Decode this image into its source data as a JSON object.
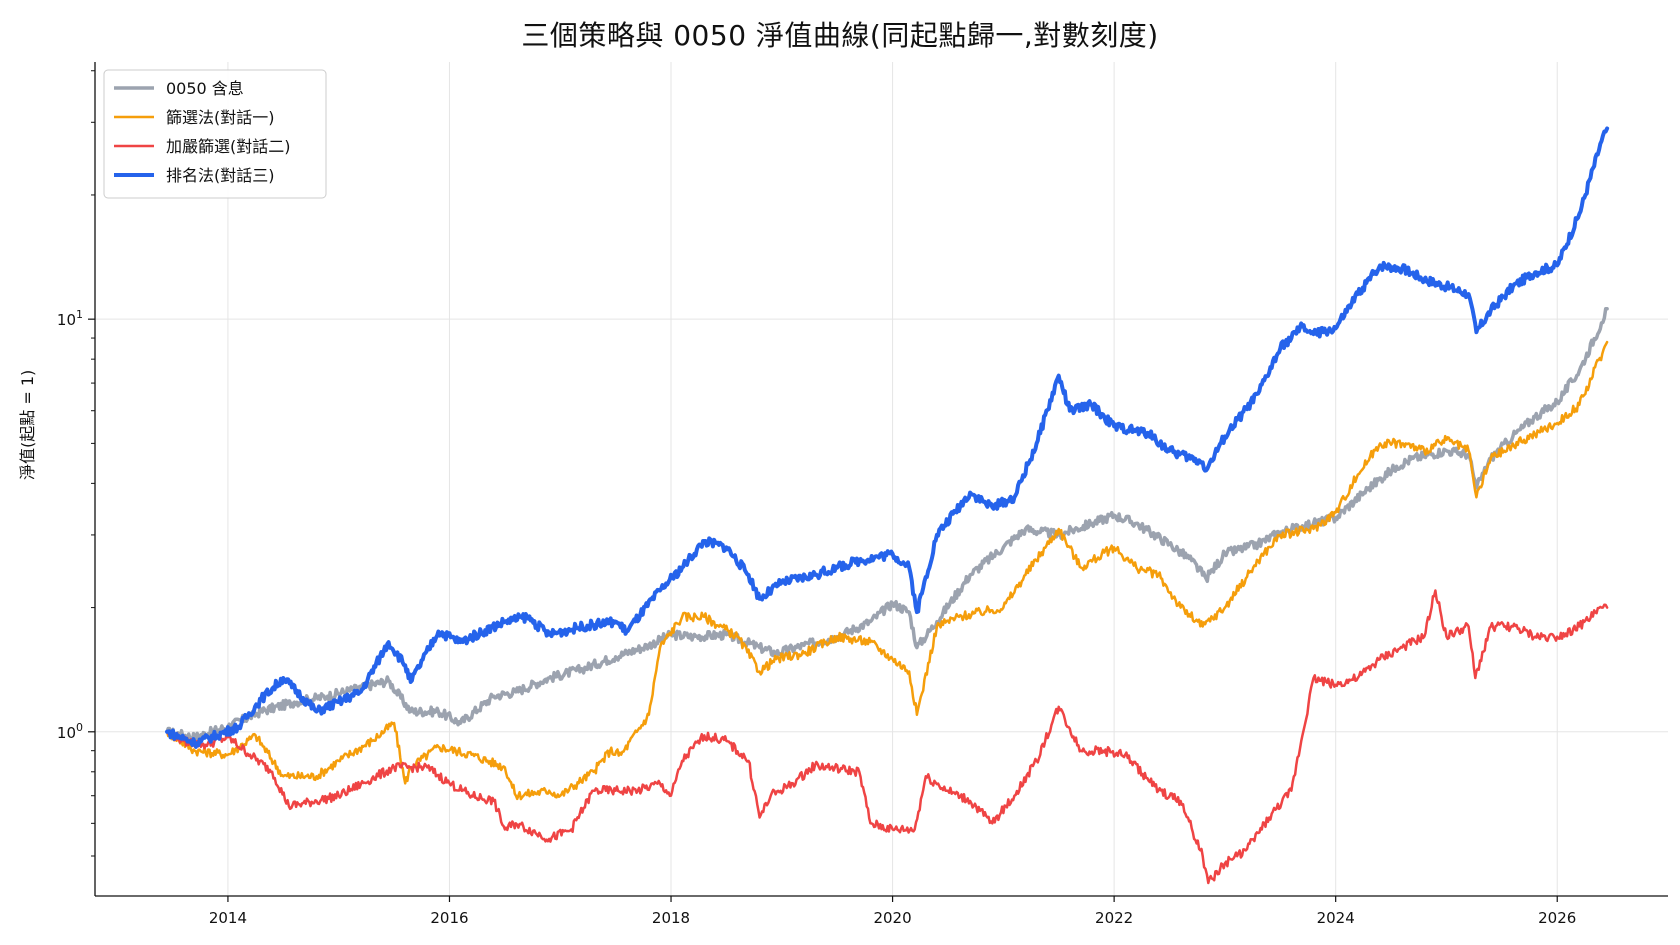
{
  "chart_data": {
    "type": "line",
    "title": "三個策略與 0050 淨值曲線(同起點歸一,對數刻度)",
    "ylabel": "淨值(起點 = 1)",
    "xlabel": "",
    "yscale": "log",
    "xlim": [
      2012.8,
      2027.0
    ],
    "ylim": [
      0.4,
      42
    ],
    "grid": true,
    "legend_position": "top-left",
    "x_ticks": [
      {
        "value": 2014,
        "label": "2014"
      },
      {
        "value": 2016,
        "label": "2016"
      },
      {
        "value": 2018,
        "label": "2018"
      },
      {
        "value": 2020,
        "label": "2020"
      },
      {
        "value": 2022,
        "label": "2022"
      },
      {
        "value": 2024,
        "label": "2024"
      },
      {
        "value": 2026,
        "label": "2026"
      }
    ],
    "y_ticks": [
      {
        "value": 1,
        "base": "10",
        "exp": "0"
      },
      {
        "value": 10,
        "base": "10",
        "exp": "1"
      }
    ],
    "series": [
      {
        "name": "0050 含息",
        "color": "#9ca3af",
        "width": 3.5,
        "x": [
          2013.45,
          2013.7,
          2014.0,
          2014.3,
          2014.6,
          2014.9,
          2015.2,
          2015.45,
          2015.65,
          2015.9,
          2016.1,
          2016.4,
          2016.6,
          2016.9,
          2017.2,
          2017.5,
          2017.8,
          2018.0,
          2018.2,
          2018.5,
          2018.8,
          2018.95,
          2019.2,
          2019.5,
          2019.8,
          2020.0,
          2020.15,
          2020.22,
          2020.4,
          2020.7,
          2021.0,
          2021.2,
          2021.5,
          2021.8,
          2022.0,
          2022.2,
          2022.5,
          2022.7,
          2022.83,
          2023.0,
          2023.3,
          2023.5,
          2023.8,
          2024.0,
          2024.3,
          2024.55,
          2024.7,
          2025.0,
          2025.2,
          2025.27,
          2025.4,
          2025.6,
          2025.8,
          2026.0,
          2026.2,
          2026.4,
          2026.45
        ],
        "y": [
          1.0,
          0.97,
          1.03,
          1.12,
          1.18,
          1.22,
          1.28,
          1.33,
          1.12,
          1.12,
          1.05,
          1.22,
          1.25,
          1.35,
          1.42,
          1.52,
          1.62,
          1.72,
          1.7,
          1.72,
          1.6,
          1.55,
          1.62,
          1.7,
          1.85,
          2.05,
          1.95,
          1.6,
          1.85,
          2.4,
          2.8,
          3.1,
          3.0,
          3.2,
          3.35,
          3.2,
          2.85,
          2.6,
          2.35,
          2.7,
          2.85,
          3.05,
          3.2,
          3.3,
          3.9,
          4.4,
          4.6,
          4.8,
          4.7,
          3.9,
          4.6,
          5.2,
          5.8,
          6.3,
          7.5,
          9.8,
          10.6
        ]
      },
      {
        "name": "篩選法(對話一)",
        "color": "#f59e0b",
        "width": 2.5,
        "x": [
          2013.45,
          2013.7,
          2014.0,
          2014.25,
          2014.5,
          2014.8,
          2015.0,
          2015.3,
          2015.5,
          2015.6,
          2015.65,
          2015.9,
          2016.2,
          2016.5,
          2016.6,
          2016.9,
          2017.0,
          2017.3,
          2017.45,
          2017.55,
          2017.8,
          2017.9,
          2018.1,
          2018.3,
          2018.6,
          2018.8,
          2018.95,
          2019.2,
          2019.5,
          2019.8,
          2020.0,
          2020.15,
          2020.22,
          2020.4,
          2020.6,
          2021.0,
          2021.2,
          2021.5,
          2021.7,
          2022.0,
          2022.2,
          2022.4,
          2022.6,
          2022.8,
          2023.0,
          2023.3,
          2023.5,
          2023.8,
          2024.0,
          2024.2,
          2024.4,
          2024.6,
          2024.8,
          2025.0,
          2025.2,
          2025.27,
          2025.4,
          2025.7,
          2026.0,
          2026.2,
          2026.45
        ],
        "y": [
          1.0,
          0.9,
          0.88,
          0.98,
          0.78,
          0.78,
          0.85,
          0.95,
          1.05,
          0.75,
          0.82,
          0.92,
          0.88,
          0.82,
          0.7,
          0.72,
          0.7,
          0.8,
          0.9,
          0.88,
          1.1,
          1.6,
          1.9,
          1.9,
          1.7,
          1.4,
          1.5,
          1.55,
          1.7,
          1.65,
          1.5,
          1.4,
          1.1,
          1.8,
          1.9,
          2.0,
          2.4,
          3.1,
          2.5,
          2.8,
          2.5,
          2.4,
          2.0,
          1.8,
          2.0,
          2.6,
          3.0,
          3.1,
          3.4,
          4.2,
          5.0,
          5.0,
          4.8,
          5.1,
          4.8,
          3.7,
          4.6,
          5.1,
          5.6,
          6.2,
          8.8
        ]
      },
      {
        "name": "加嚴篩選(對話二)",
        "color": "#ef4444",
        "width": 2.5,
        "x": [
          2013.45,
          2013.6,
          2013.8,
          2014.0,
          2014.2,
          2014.4,
          2014.55,
          2014.8,
          2015.0,
          2015.3,
          2015.5,
          2015.8,
          2016.0,
          2016.2,
          2016.4,
          2016.5,
          2016.6,
          2016.9,
          2017.1,
          2017.3,
          2017.5,
          2017.7,
          2017.9,
          2018.0,
          2018.1,
          2018.3,
          2018.5,
          2018.7,
          2018.8,
          2018.9,
          2019.1,
          2019.3,
          2019.7,
          2019.8,
          2020.0,
          2020.2,
          2020.3,
          2020.5,
          2020.7,
          2020.9,
          2021.1,
          2021.3,
          2021.5,
          2021.7,
          2021.9,
          2022.1,
          2022.4,
          2022.6,
          2022.8,
          2022.85,
          2023.0,
          2023.2,
          2023.4,
          2023.6,
          2023.8,
          2024.0,
          2024.2,
          2024.4,
          2024.6,
          2024.8,
          2024.9,
          2025.0,
          2025.2,
          2025.26,
          2025.4,
          2025.6,
          2025.8,
          2026.0,
          2026.2,
          2026.4,
          2026.45
        ],
        "y": [
          1.0,
          0.95,
          0.93,
          0.97,
          0.88,
          0.8,
          0.66,
          0.68,
          0.7,
          0.77,
          0.82,
          0.82,
          0.75,
          0.7,
          0.68,
          0.58,
          0.6,
          0.55,
          0.58,
          0.72,
          0.72,
          0.72,
          0.75,
          0.7,
          0.85,
          0.98,
          0.95,
          0.85,
          0.62,
          0.7,
          0.75,
          0.83,
          0.8,
          0.6,
          0.58,
          0.58,
          0.78,
          0.72,
          0.68,
          0.6,
          0.7,
          0.85,
          1.15,
          0.9,
          0.9,
          0.88,
          0.72,
          0.68,
          0.5,
          0.43,
          0.48,
          0.52,
          0.62,
          0.72,
          1.35,
          1.3,
          1.35,
          1.5,
          1.6,
          1.7,
          2.2,
          1.7,
          1.8,
          1.35,
          1.8,
          1.8,
          1.7,
          1.7,
          1.8,
          2.0,
          2.0
        ]
      },
      {
        "name": "排名法(對話三)",
        "color": "#2563eb",
        "width": 4,
        "x": [
          2013.45,
          2013.7,
          2013.9,
          2014.1,
          2014.3,
          2014.5,
          2014.8,
          2015.0,
          2015.2,
          2015.45,
          2015.6,
          2015.65,
          2015.9,
          2016.1,
          2016.5,
          2016.7,
          2016.9,
          2017.2,
          2017.5,
          2017.6,
          2017.9,
          2018.1,
          2018.3,
          2018.5,
          2018.7,
          2018.8,
          2019.0,
          2019.3,
          2019.5,
          2019.7,
          2020.0,
          2020.15,
          2020.22,
          2020.4,
          2020.7,
          2020.9,
          2021.1,
          2021.3,
          2021.5,
          2021.6,
          2021.8,
          2022.0,
          2022.3,
          2022.5,
          2022.8,
          2022.83,
          2023.0,
          2023.3,
          2023.5,
          2023.7,
          2023.8,
          2024.0,
          2024.2,
          2024.4,
          2024.6,
          2024.8,
          2025.0,
          2025.2,
          2025.27,
          2025.4,
          2025.6,
          2025.8,
          2026.0,
          2026.2,
          2026.4,
          2026.45
        ],
        "y": [
          1.0,
          0.94,
          0.98,
          1.03,
          1.2,
          1.35,
          1.12,
          1.18,
          1.25,
          1.65,
          1.45,
          1.32,
          1.75,
          1.65,
          1.85,
          1.9,
          1.72,
          1.8,
          1.85,
          1.75,
          2.2,
          2.5,
          2.9,
          2.8,
          2.4,
          2.1,
          2.3,
          2.4,
          2.5,
          2.6,
          2.7,
          2.5,
          1.95,
          3.0,
          3.8,
          3.5,
          3.7,
          5.0,
          7.3,
          6.0,
          6.2,
          5.5,
          5.3,
          4.8,
          4.5,
          4.3,
          5.2,
          6.6,
          8.5,
          9.6,
          9.2,
          9.5,
          11.5,
          13.5,
          13.3,
          12.5,
          12.0,
          11.5,
          9.3,
          10.5,
          12.0,
          13.0,
          13.5,
          18.0,
          27.0,
          29.0
        ]
      }
    ]
  }
}
